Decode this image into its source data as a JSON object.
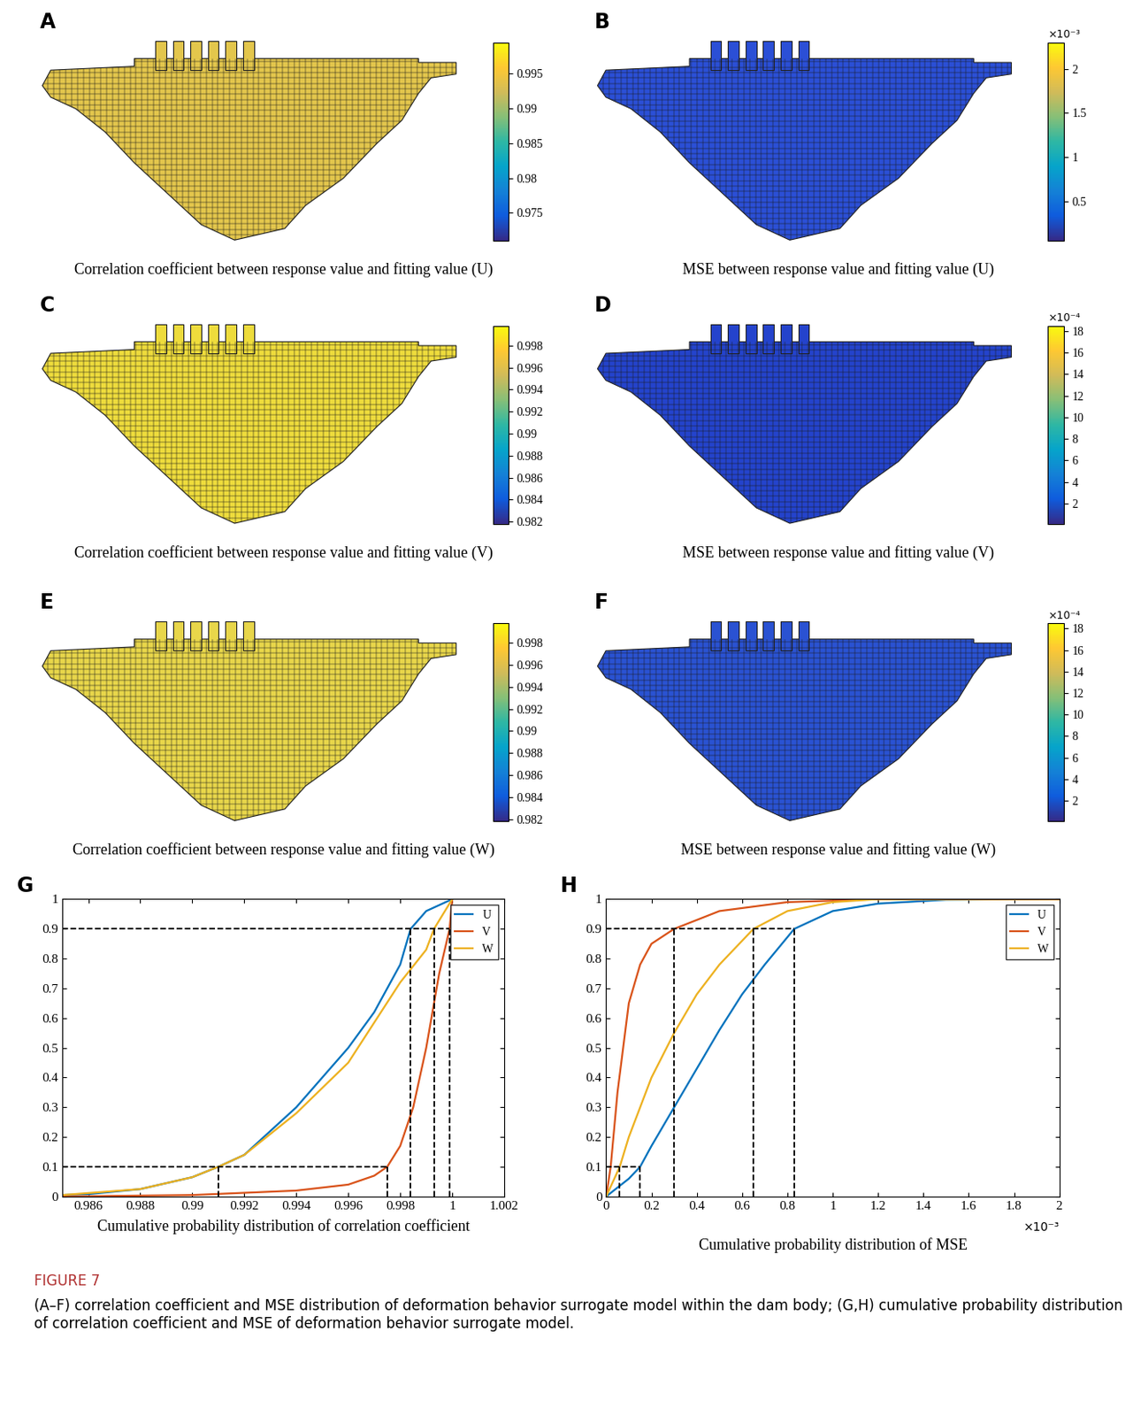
{
  "chart_data": [
    {
      "type": "image",
      "panel": "A",
      "title": "Correlation coefficient between response value and fitting value (U)",
      "color": "#e3c64c",
      "colorbar": {
        "range": [
          0.971,
          0.9995
        ],
        "ticks": [
          0.975,
          0.98,
          0.985,
          0.99,
          0.995
        ]
      }
    },
    {
      "type": "image",
      "panel": "B",
      "title": "MSE between response value and fitting value (U)",
      "color": "#2b4fd6",
      "colorbar": {
        "range": [
          0.05,
          2.3
        ],
        "ticks": [
          0.5,
          1,
          1.5,
          2
        ],
        "multiplier": "×10⁻³"
      }
    },
    {
      "type": "image",
      "panel": "C",
      "title": "Correlation coefficient between response value and fitting value (V)",
      "color": "#eedc3c",
      "colorbar": {
        "range": [
          0.9818,
          0.9998
        ],
        "ticks": [
          0.982,
          0.984,
          0.986,
          0.988,
          0.99,
          0.992,
          0.994,
          0.996,
          0.998
        ]
      }
    },
    {
      "type": "image",
      "panel": "D",
      "title": "MSE between response value and fitting value (V)",
      "color": "#2443cc",
      "colorbar": {
        "range": [
          0.1,
          18.5
        ],
        "ticks": [
          2,
          4,
          6,
          8,
          10,
          12,
          14,
          16,
          18
        ],
        "multiplier": "×10⁻⁴"
      }
    },
    {
      "type": "image",
      "panel": "E",
      "title": "Correlation coefficient between response value and fitting value (W)",
      "color": "#e8d64a",
      "colorbar": {
        "range": [
          0.9818,
          0.9998
        ],
        "ticks": [
          0.982,
          0.984,
          0.986,
          0.988,
          0.99,
          0.992,
          0.994,
          0.996,
          0.998
        ]
      }
    },
    {
      "type": "image",
      "panel": "F",
      "title": "MSE between response value and fitting value (W)",
      "color": "#2a52d2",
      "colorbar": {
        "range": [
          0.1,
          18.5
        ],
        "ticks": [
          2,
          4,
          6,
          8,
          10,
          12,
          14,
          16,
          18
        ],
        "multiplier": "×10⁻⁴"
      }
    },
    {
      "type": "line",
      "panel": "G",
      "x_label": "Cumulative probability distribution of correlation coefficient",
      "xlim": [
        0.985,
        1.002
      ],
      "xticks": [
        0.986,
        0.988,
        0.99,
        0.992,
        0.994,
        0.996,
        0.998,
        1,
        1.002
      ],
      "ylim": [
        0,
        1
      ],
      "yticks": [
        0,
        0.1,
        0.2,
        0.3,
        0.4,
        0.5,
        0.6,
        0.7,
        0.8,
        0.9,
        1
      ],
      "legend": "upper right",
      "grid": false,
      "series": [
        {
          "name": "U",
          "color": "#0072bd",
          "x": [
            0.985,
            0.986,
            0.988,
            0.99,
            0.991,
            0.992,
            0.994,
            0.996,
            0.997,
            0.998,
            0.9984,
            0.999,
            1.0
          ],
          "values": [
            0.005,
            0.008,
            0.025,
            0.065,
            0.1,
            0.14,
            0.3,
            0.5,
            0.62,
            0.78,
            0.9,
            0.96,
            1.0
          ]
        },
        {
          "name": "V",
          "color": "#d95319",
          "x": [
            0.985,
            0.99,
            0.994,
            0.996,
            0.997,
            0.9975,
            0.998,
            0.9985,
            0.999,
            0.9995,
            0.9999,
            1.0
          ],
          "values": [
            0.0,
            0.005,
            0.02,
            0.04,
            0.07,
            0.1,
            0.17,
            0.3,
            0.5,
            0.75,
            0.9,
            1.0
          ]
        },
        {
          "name": "W",
          "color": "#edb120",
          "x": [
            0.985,
            0.988,
            0.99,
            0.991,
            0.992,
            0.994,
            0.996,
            0.998,
            0.999,
            0.9993,
            1.0
          ],
          "values": [
            0.005,
            0.025,
            0.065,
            0.1,
            0.14,
            0.28,
            0.45,
            0.72,
            0.83,
            0.9,
            1.0
          ]
        }
      ],
      "hlines": [
        {
          "y": 0.9,
          "x_end": 0.9999
        },
        {
          "y": 0.1,
          "x_end": 0.9975
        }
      ],
      "vlines": [
        {
          "x": 0.991,
          "y_end": 0.1
        },
        {
          "x": 0.9975,
          "y_end": 0.1
        },
        {
          "x": 0.9984,
          "y_end": 0.9
        },
        {
          "x": 0.9993,
          "y_end": 0.9
        },
        {
          "x": 0.9999,
          "y_end": 0.9
        }
      ]
    },
    {
      "type": "line",
      "panel": "H",
      "x_label": "Cumulative probability distribution of MSE",
      "x_multiplier": "×10⁻³",
      "xlim": [
        0,
        2
      ],
      "xticks": [
        0,
        0.2,
        0.4,
        0.6,
        0.8,
        1,
        1.2,
        1.4,
        1.6,
        1.8,
        2
      ],
      "ylim": [
        0,
        1
      ],
      "yticks": [
        0,
        0.1,
        0.2,
        0.3,
        0.4,
        0.5,
        0.6,
        0.7,
        0.8,
        0.9,
        1
      ],
      "legend": "upper right",
      "grid": false,
      "series": [
        {
          "name": "U",
          "color": "#0072bd",
          "x": [
            0,
            0.05,
            0.1,
            0.15,
            0.2,
            0.3,
            0.4,
            0.5,
            0.6,
            0.7,
            0.83,
            1.0,
            1.2,
            1.5,
            2.0
          ],
          "values": [
            0,
            0.03,
            0.06,
            0.1,
            0.17,
            0.3,
            0.43,
            0.56,
            0.68,
            0.78,
            0.9,
            0.96,
            0.985,
            0.998,
            1.0
          ]
        },
        {
          "name": "V",
          "color": "#d95319",
          "x": [
            0,
            0.02,
            0.05,
            0.1,
            0.15,
            0.2,
            0.3,
            0.5,
            0.8,
            1.2,
            2.0
          ],
          "values": [
            0,
            0.1,
            0.35,
            0.65,
            0.78,
            0.85,
            0.9,
            0.96,
            0.99,
            1.0,
            1.0
          ]
        },
        {
          "name": "W",
          "color": "#edb120",
          "x": [
            0,
            0.06,
            0.1,
            0.2,
            0.3,
            0.4,
            0.5,
            0.65,
            0.8,
            1.0,
            1.2,
            2.0
          ],
          "values": [
            0,
            0.1,
            0.2,
            0.4,
            0.55,
            0.68,
            0.78,
            0.9,
            0.96,
            0.99,
            1.0,
            1.0
          ]
        }
      ],
      "hlines": [
        {
          "y": 0.9,
          "x_end": 0.83
        },
        {
          "y": 0.1,
          "x_end": 0.15
        }
      ],
      "vlines": [
        {
          "x": 0.06,
          "y_end": 0.1
        },
        {
          "x": 0.15,
          "y_end": 0.1
        },
        {
          "x": 0.3,
          "y_end": 0.9
        },
        {
          "x": 0.65,
          "y_end": 0.9
        },
        {
          "x": 0.83,
          "y_end": 0.9
        }
      ]
    }
  ],
  "caption": {
    "label": "FIGURE 7",
    "text": "(A–F) correlation coefficient and MSE distribution of deformation behavior surrogate model within the dam body; (G,H) cumulative probability distribution of correlation coefficient and MSE of deformation behavior surrogate model."
  }
}
